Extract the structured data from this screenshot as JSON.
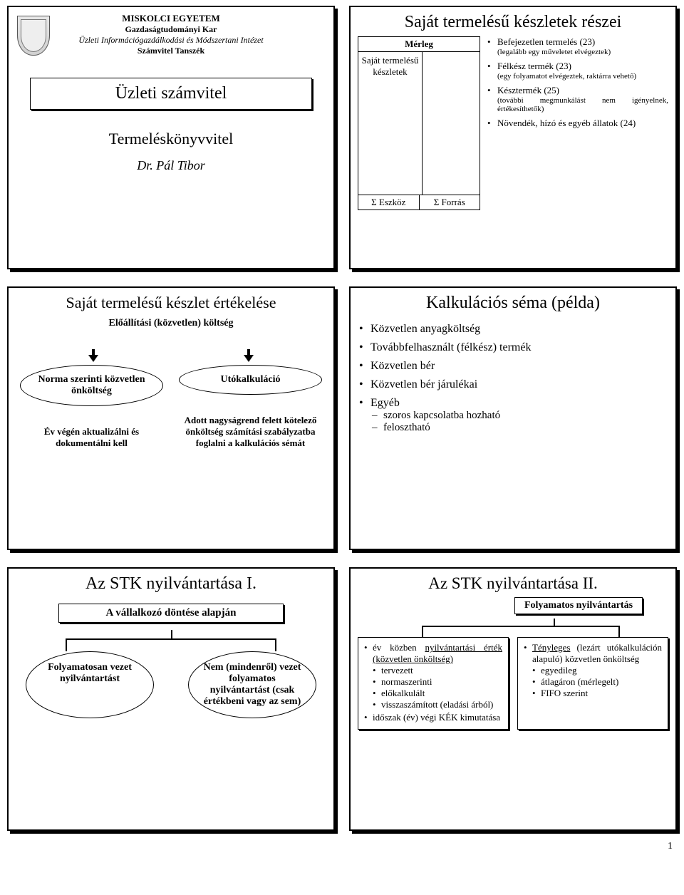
{
  "slide1": {
    "uni": "MISKOLCI EGYETEM",
    "faculty": "Gazdaságtudományi Kar",
    "institute": "Üzleti Információgazdálkodási és Módszertani Intézet",
    "dept": "Számvitel Tanszék",
    "title": "Üzleti számvitel",
    "subtitle": "Termeléskönyvvitel",
    "author": "Dr. Pál Tibor"
  },
  "slide2": {
    "title": "Saját termelésű készletek részei",
    "merleg_head": "Mérleg",
    "merleg_left": "Saját termelésű készletek",
    "merleg_foot_left": "Σ Eszköz",
    "merleg_foot_right": "Σ Forrás",
    "items": [
      {
        "main": "Befejezetlen termelés (23)",
        "sub": "(legalább egy műveletet elvégeztek)"
      },
      {
        "main": "Félkész termék (23)",
        "sub": "(egy folyamatot elvégeztek, raktárra vehető)"
      },
      {
        "main": "Késztermék (25)",
        "sub": "(további megmunkálást nem igényelnek, értékesíthetők)"
      },
      {
        "main": "Növendék, hízó és egyéb állatok (24)",
        "sub": ""
      }
    ]
  },
  "slide3": {
    "title": "Saját termelésű készlet értékelése",
    "subtitle": "Előállítási (közvetlen) költség",
    "left_oval": "Norma szerinti közvetlen önköltség",
    "right_oval": "Utókalkuláció",
    "left_note": "Év végén aktualizálni és dokumentálni kell",
    "right_note": "Adott nagyságrend felett kötelező önköltség számítási szabályzatba foglalni a kalkulációs sémát"
  },
  "slide4": {
    "title": "Kalkulációs séma (példa)",
    "items": [
      "Közvetlen anyagköltség",
      "Továbbfelhasznált (félkész) termék",
      "Közvetlen bér",
      "Közvetlen bér járulékai",
      "Egyéb"
    ],
    "subitems": [
      "szoros kapcsolatba hozható",
      "felosztható"
    ]
  },
  "slide5": {
    "title": "Az STK nyilvántartása I.",
    "subtitle": "A vállalkozó döntése alapján",
    "left": "Folyamatosan vezet nyilvántartást",
    "right": "Nem (mindenről) vezet folyamatos nyilvántartást (csak értékbeni vagy az sem)"
  },
  "slide6": {
    "title": "Az STK nyilvántartása II.",
    "subtitle": "Folyamatos nyilvántartás",
    "left": {
      "l1a": "év közben ",
      "l1b": "nyilvántartási érték (közvetlen önköltség)",
      "subs": [
        "tervezett",
        "normaszerinti",
        "előkalkulált",
        "visszaszámított (eladási árból)"
      ],
      "l2": "időszak (év) végi KÉK kimutatása"
    },
    "right": {
      "r1a": "Tényleges",
      "r1b": " (lezárt utókal­kuláción alapuló) közvetlen önköltség",
      "subs": [
        "egyedileg",
        "átlagáron (mérlegelt)",
        "FIFO szerint"
      ]
    }
  },
  "pagenum": "1"
}
